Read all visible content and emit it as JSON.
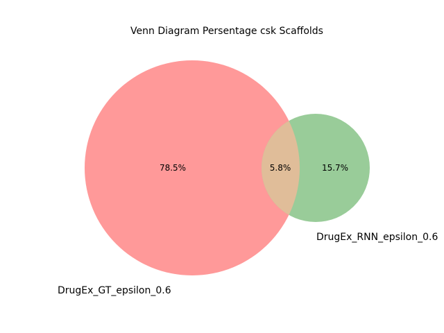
{
  "title": "Venn Diagram Persentage csk Scaffolds",
  "sets": [
    {
      "name": "DrugEx_GT_epsilon_0.6",
      "color": "#ff9999"
    },
    {
      "name": "DrugEx_RNN_epsilon_0.6",
      "color": "#99cc99"
    }
  ],
  "overlap_color": "#e0bd99",
  "regions": {
    "only_a": "78.5%",
    "overlap": "5.8%",
    "only_b": "15.7%"
  }
}
